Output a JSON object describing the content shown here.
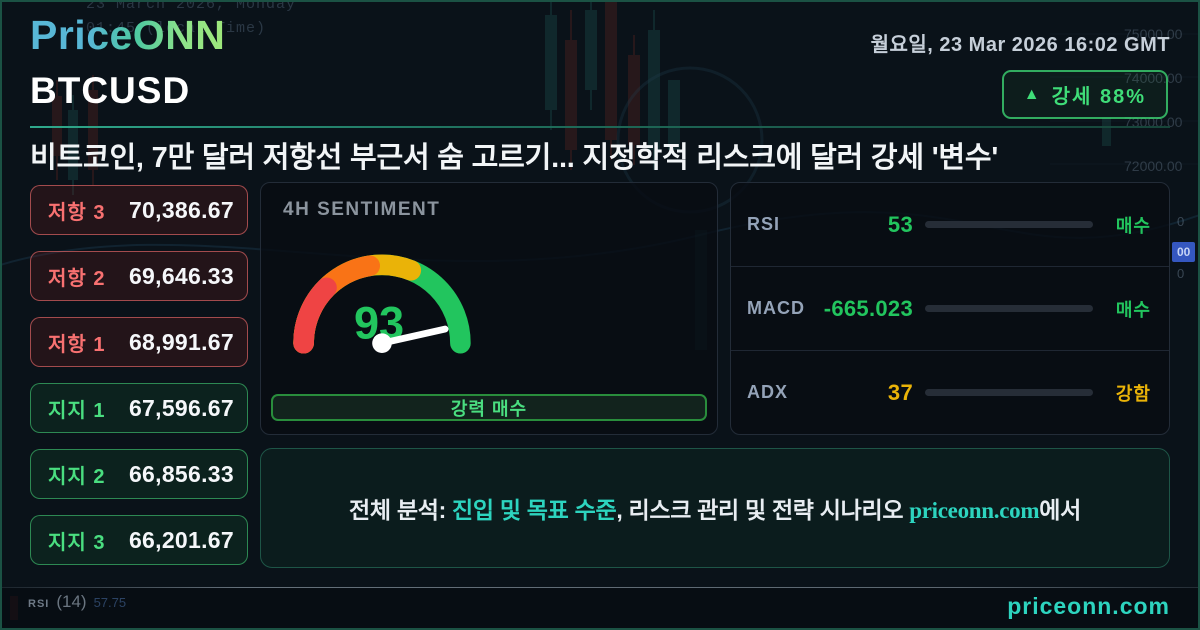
{
  "header": {
    "logo_text": "PriceONN",
    "datetime": "월요일, 23 Mar 2026 16:02 GMT",
    "symbol": "BTCUSD",
    "badge": {
      "arrow": "▲",
      "text": "강세 88%"
    }
  },
  "headline": "비트코인, 7만 달러 저항선 부근서 숨 고르기... 지정학적 리스크에 달러 강세 '변수'",
  "levels": [
    {
      "type": "resistance",
      "label": "저항 3",
      "value": "70,386.67"
    },
    {
      "type": "resistance",
      "label": "저항 2",
      "value": "69,646.33"
    },
    {
      "type": "resistance",
      "label": "저항 1",
      "value": "68,991.67"
    },
    {
      "type": "support",
      "label": "지지 1",
      "value": "67,596.67"
    },
    {
      "type": "support",
      "label": "지지 2",
      "value": "66,856.33"
    },
    {
      "type": "support",
      "label": "지지 3",
      "value": "66,201.67"
    }
  ],
  "sentiment": {
    "title": "4H SENTIMENT",
    "score": 93,
    "score_display": "93",
    "label": "강력 매수"
  },
  "indicators": {
    "rows": [
      {
        "name": "RSI",
        "value": "53",
        "signal": "매수",
        "fill_pct": 53,
        "color": "#22c55e"
      },
      {
        "name": "MACD",
        "value": "-665.023",
        "signal": "매수",
        "fill_pct": 100,
        "color": "#22c55e"
      },
      {
        "name": "ADX",
        "value": "37",
        "signal": "강함",
        "fill_pct": 37,
        "color": "#eab308"
      }
    ]
  },
  "cta": {
    "prefix": "전체 분석: ",
    "link1": "진입 및 목표 수준",
    "middle": ", 리스크 관리 및 전략 시나리오 ",
    "site": "priceonn.com",
    "suffix": "에서"
  },
  "footer": {
    "rsi_abbr": "RSI",
    "rsi_period": "(14)",
    "rsi_value": "57.75",
    "brand": "priceonn.com"
  },
  "background": {
    "watermark_line1": "23 March 2026, Monday",
    "watermark_line2": "01:45 (local Time)",
    "axis_labels": [
      "75000.00",
      "74000.00",
      "73000.00",
      "72000.00"
    ],
    "peek_digit": "0",
    "price_tag": "00"
  },
  "colors": {
    "green": "#22c55e",
    "red": "#f87171",
    "yellow": "#eab308",
    "teal": "#2dd4bf"
  }
}
